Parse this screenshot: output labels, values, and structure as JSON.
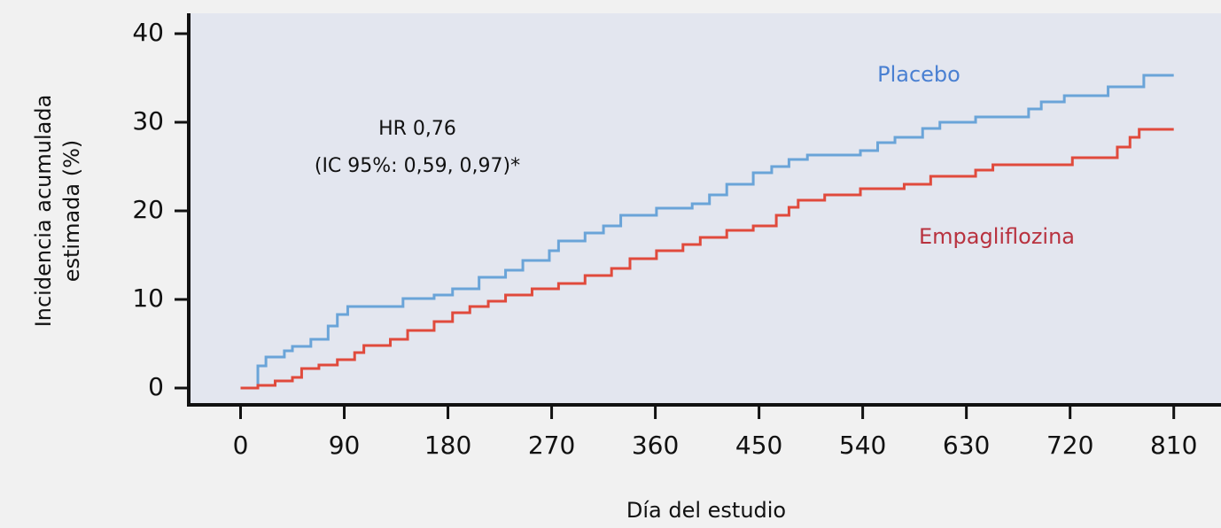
{
  "chart_data": {
    "type": "step",
    "y_label_lines": [
      "Incidencia acumulada",
      "estimada (%)"
    ],
    "x_label": "Día del estudio",
    "annotations": [
      "HR 0,76",
      "(IC 95%: 0,59, 0,97)*"
    ],
    "xlim": [
      -45,
      851
    ],
    "ylim": [
      -1.9,
      42.3
    ],
    "xticks": [
      0,
      90,
      180,
      270,
      360,
      450,
      540,
      630,
      720,
      810
    ],
    "yticks": [
      0,
      10,
      20,
      30,
      40
    ],
    "series": [
      {
        "name": "Placebo",
        "color": "#6aa4d8",
        "label_color": "#4a80d2",
        "x": [
          0,
          15,
          22,
          38,
          45,
          61,
          76,
          84,
          93,
          141,
          168,
          184,
          207,
          230,
          245,
          268,
          276,
          299,
          315,
          330,
          361,
          392,
          407,
          422,
          445,
          461,
          476,
          492,
          538,
          553,
          568,
          592,
          607,
          638,
          684,
          695,
          715,
          753,
          784,
          810
        ],
        "values": [
          0,
          2.5,
          3.5,
          4.2,
          4.7,
          5.5,
          7,
          8.3,
          9.2,
          10.1,
          10.5,
          11.2,
          12.5,
          13.3,
          14.4,
          15.5,
          16.6,
          17.5,
          18.3,
          19.5,
          20.3,
          20.8,
          21.8,
          23,
          24.3,
          25,
          25.8,
          26.3,
          26.8,
          27.7,
          28.3,
          29.3,
          30,
          30.6,
          31.5,
          32.3,
          33,
          34,
          35.3,
          35.3
        ]
      },
      {
        "name": "Empagliflozina",
        "color": "#e04a3c",
        "label_color": "#b8323f",
        "x": [
          0,
          15,
          30,
          45,
          53,
          68,
          84,
          99,
          107,
          130,
          145,
          168,
          184,
          199,
          215,
          230,
          253,
          276,
          299,
          322,
          338,
          361,
          384,
          399,
          422,
          445,
          465,
          476,
          484,
          507,
          538,
          576,
          599,
          638,
          653,
          722,
          761,
          772,
          780,
          810
        ],
        "values": [
          0,
          0.3,
          0.8,
          1.2,
          2.2,
          2.6,
          3.2,
          4,
          4.8,
          5.5,
          6.5,
          7.5,
          8.5,
          9.2,
          9.8,
          10.5,
          11.2,
          11.8,
          12.7,
          13.5,
          14.6,
          15.5,
          16.2,
          17,
          17.8,
          18.3,
          19.5,
          20.4,
          21.2,
          21.8,
          22.5,
          23,
          23.9,
          24.6,
          25.2,
          26,
          27.2,
          28.3,
          29.2,
          29.2
        ]
      }
    ]
  }
}
